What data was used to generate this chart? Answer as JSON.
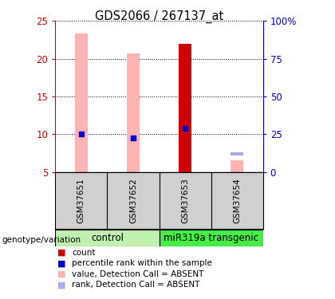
{
  "title": "GDS2066 / 267137_at",
  "samples": [
    "GSM37651",
    "GSM37652",
    "GSM37653",
    "GSM37654"
  ],
  "ylim_left": [
    5,
    25
  ],
  "ylim_right": [
    0,
    100
  ],
  "yticks_left": [
    5,
    10,
    15,
    20,
    25
  ],
  "yticks_right": [
    0,
    25,
    50,
    75,
    100
  ],
  "pink_bar_heights": [
    23.3,
    20.7,
    null,
    6.5
  ],
  "red_bar_heights": [
    null,
    null,
    22.0,
    null
  ],
  "blue_dot_y": [
    10.0,
    9.5,
    10.8,
    null
  ],
  "light_blue_bar_y": [
    null,
    null,
    null,
    7.2
  ],
  "pink_color": "#ffb3b3",
  "red_color": "#cc0000",
  "blue_color": "#0000cc",
  "light_blue_color": "#aaaaee",
  "left_axis_color": "#cc0000",
  "right_axis_color": "#0000cc",
  "group1_color": "#c0f0b0",
  "group2_color": "#44ee44",
  "sample_bg_color": "#d0d0d0",
  "legend_items": [
    {
      "label": "count",
      "color": "#cc0000"
    },
    {
      "label": "percentile rank within the sample",
      "color": "#0000cc"
    },
    {
      "label": "value, Detection Call = ABSENT",
      "color": "#ffb3b3"
    },
    {
      "label": "rank, Detection Call = ABSENT",
      "color": "#aaaaee"
    }
  ]
}
